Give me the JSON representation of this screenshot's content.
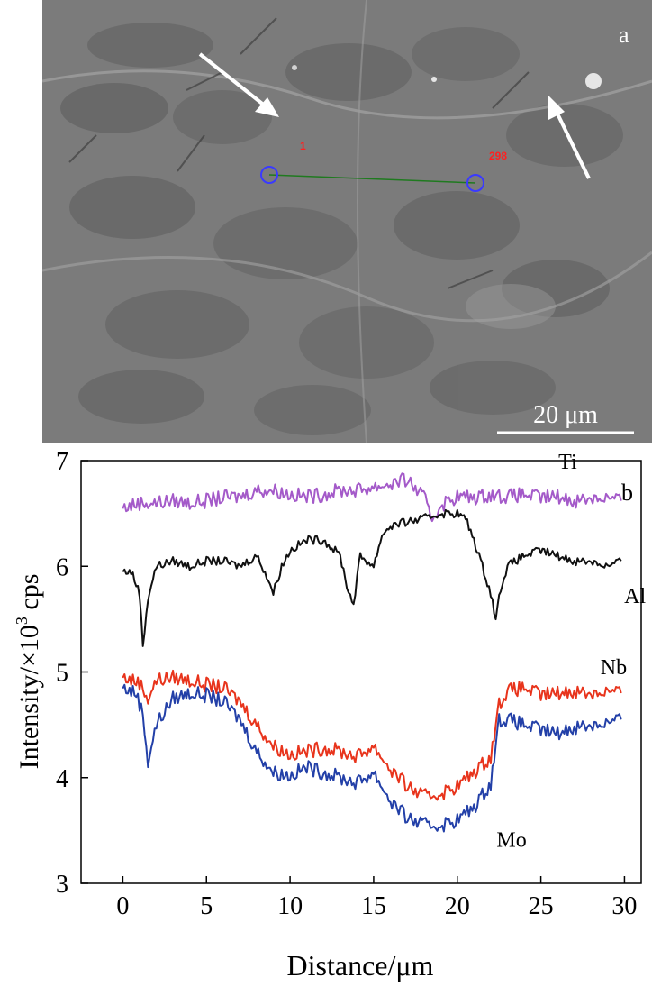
{
  "panel_a": {
    "label": "a",
    "scale_bar_text": "20 μm",
    "line_scan_start_label": "1",
    "line_scan_end_label": "298",
    "colors": {
      "background": "#7a7a7a",
      "marker": "#3a3aff",
      "scan_line": "#1f7a1f",
      "marker_label": "#ff2020",
      "arrow": "#ffffff"
    }
  },
  "panel_b": {
    "label": "b"
  },
  "chart_data": {
    "type": "line",
    "xlabel": "Distance/μm",
    "ylabel_prefix": "Intensity/×10",
    "ylabel_exponent": "3",
    "ylabel_suffix": " cps",
    "xlim": [
      -2.5,
      31
    ],
    "ylim": [
      3,
      7
    ],
    "xticks": [
      0,
      5,
      10,
      15,
      20,
      25,
      30
    ],
    "yticks": [
      3,
      4,
      5,
      6,
      7
    ],
    "series": [
      {
        "name": "Ti",
        "color": "#a45ac9",
        "x": [
          0,
          1,
          2,
          3,
          4,
          5,
          6,
          7,
          8,
          9,
          10,
          11,
          12,
          13,
          14,
          15,
          16,
          17,
          18,
          18.5,
          19,
          20,
          21,
          22,
          23,
          24,
          25,
          26,
          27,
          28,
          29,
          29.8
        ],
        "y": [
          6.55,
          6.6,
          6.6,
          6.62,
          6.6,
          6.62,
          6.65,
          6.66,
          6.72,
          6.72,
          6.68,
          6.66,
          6.68,
          6.72,
          6.72,
          6.75,
          6.78,
          6.82,
          6.65,
          6.45,
          6.58,
          6.66,
          6.65,
          6.68,
          6.66,
          6.68,
          6.65,
          6.66,
          6.62,
          6.65,
          6.65,
          6.62
        ]
      },
      {
        "name": "Al",
        "color": "#111111",
        "x": [
          0,
          0.5,
          1,
          1.2,
          1.5,
          2,
          3,
          4,
          5,
          6,
          7,
          8,
          8.5,
          9,
          9.5,
          10,
          11,
          12,
          13,
          13.5,
          13.8,
          14.2,
          15,
          15.5,
          16,
          17,
          18,
          19,
          20,
          20.5,
          21,
          21.5,
          22,
          22.3,
          22.6,
          23,
          24,
          25,
          26,
          27,
          28,
          29,
          29.8
        ],
        "y": [
          5.95,
          5.95,
          5.75,
          5.25,
          5.7,
          6.0,
          6.05,
          6.0,
          6.05,
          6.05,
          6.0,
          6.1,
          5.95,
          5.75,
          6.0,
          6.15,
          6.25,
          6.25,
          6.1,
          5.75,
          5.65,
          6.1,
          6.0,
          6.3,
          6.38,
          6.42,
          6.45,
          6.5,
          6.5,
          6.45,
          6.25,
          6.0,
          5.75,
          5.5,
          5.8,
          6.0,
          6.1,
          6.15,
          6.1,
          6.05,
          6.05,
          6.0,
          6.05
        ]
      },
      {
        "name": "Nb",
        "color": "#e8341c",
        "x": [
          0,
          1,
          1.5,
          2,
          3,
          4,
          5,
          6,
          7,
          8,
          9,
          10,
          11,
          12,
          13,
          14,
          15,
          16,
          17,
          18,
          19,
          20,
          21,
          22,
          22.5,
          23,
          24,
          25,
          26,
          27,
          28,
          29,
          29.8
        ],
        "y": [
          4.95,
          4.9,
          4.75,
          4.92,
          4.95,
          4.92,
          4.88,
          4.85,
          4.72,
          4.5,
          4.3,
          4.22,
          4.25,
          4.28,
          4.25,
          4.2,
          4.3,
          4.08,
          3.92,
          3.82,
          3.85,
          3.92,
          4.05,
          4.2,
          4.7,
          4.82,
          4.85,
          4.78,
          4.8,
          4.82,
          4.8,
          4.82,
          4.8
        ]
      },
      {
        "name": "Mo",
        "color": "#2340a8",
        "x": [
          0,
          0.8,
          1.2,
          1.5,
          2,
          3,
          4,
          5,
          6,
          7,
          8,
          9,
          10,
          11,
          12,
          13,
          14,
          15,
          16,
          17,
          18,
          19,
          20,
          21,
          22,
          22.5,
          23,
          24,
          25,
          26,
          27,
          28,
          29,
          29.8
        ],
        "y": [
          4.85,
          4.8,
          4.6,
          4.15,
          4.5,
          4.75,
          4.8,
          4.78,
          4.72,
          4.55,
          4.25,
          4.05,
          4.02,
          4.1,
          4.05,
          4.0,
          3.95,
          4.05,
          3.78,
          3.62,
          3.55,
          3.55,
          3.6,
          3.72,
          3.95,
          4.55,
          4.55,
          4.5,
          4.45,
          4.42,
          4.48,
          4.5,
          4.52,
          4.55
        ]
      }
    ],
    "annotations": [
      {
        "text": "Ti",
        "series": "Ti"
      },
      {
        "text": "Al",
        "series": "Al"
      },
      {
        "text": "Nb",
        "series": "Nb"
      },
      {
        "text": "Mo",
        "series": "Mo"
      }
    ]
  }
}
